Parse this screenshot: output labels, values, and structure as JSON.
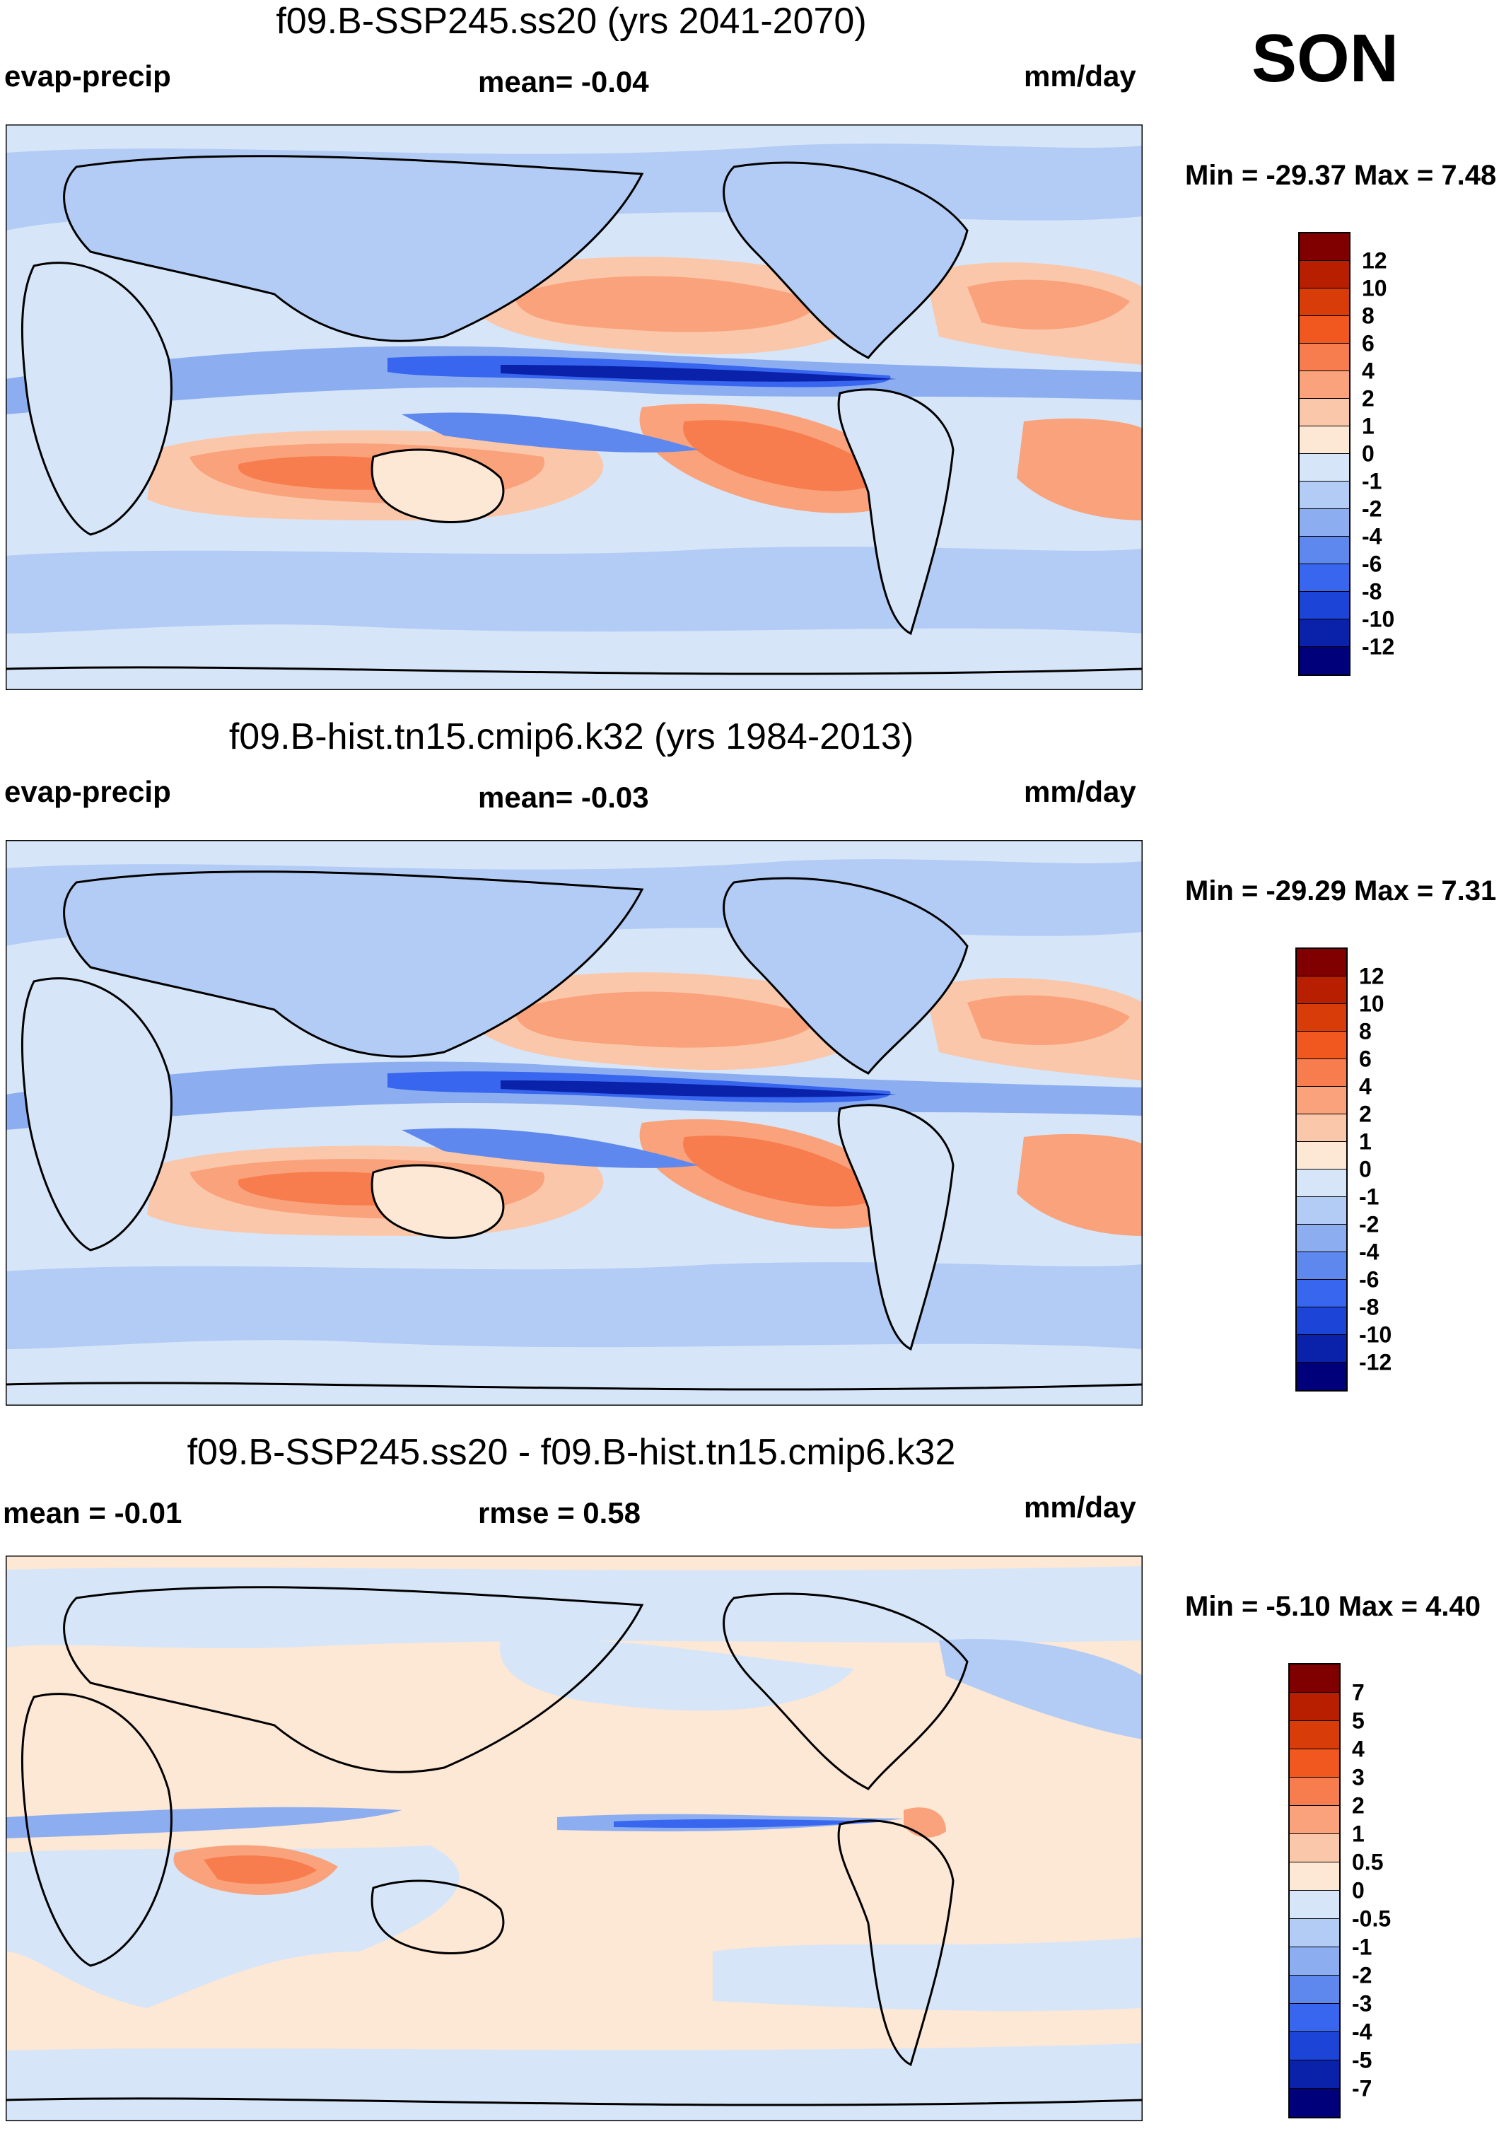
{
  "season": "SON",
  "panels": [
    {
      "title": "f09.B-SSP245.ss20 (yrs 2041-2070)",
      "left_label": "evap-precip",
      "center_label": "mean=  -0.04",
      "units": "mm/day",
      "minmax": "Min = -29.37 Max =   7.48",
      "colorbar_labels": [
        "12",
        "10",
        "8",
        "6",
        "4",
        "2",
        "1",
        "0",
        "-1",
        "-2",
        "-4",
        "-6",
        "-8",
        "-10",
        "-12"
      ]
    },
    {
      "title": "f09.B-hist.tn15.cmip6.k32 (yrs 1984-2013)",
      "left_label": "evap-precip",
      "center_label": "mean=  -0.03",
      "units": "mm/day",
      "minmax": "Min = -29.29 Max =   7.31",
      "colorbar_labels": [
        "12",
        "10",
        "8",
        "6",
        "4",
        "2",
        "1",
        "0",
        "-1",
        "-2",
        "-4",
        "-6",
        "-8",
        "-10",
        "-12"
      ]
    },
    {
      "title": "f09.B-SSP245.ss20 - f09.B-hist.tn15.cmip6.k32",
      "left_label": "mean =  -0.01",
      "center_label": "rmse =   0.58",
      "units": "mm/day",
      "minmax": "Min =  -5.10 Max =   4.40",
      "colorbar_labels": [
        "7",
        "5",
        "4",
        "3",
        "2",
        "1",
        "0.5",
        "0",
        "-0.5",
        "-1",
        "-2",
        "-3",
        "-4",
        "-5",
        "-7"
      ]
    }
  ],
  "colors": {
    "colorbar": [
      "#800000",
      "#b81e00",
      "#d83c08",
      "#f0581f",
      "#f77c4e",
      "#f9a27b",
      "#fbc7aa",
      "#fde7d5",
      "#d6e6f8",
      "#b3ccf5",
      "#8caef0",
      "#5f88ee",
      "#3866ee",
      "#1c44d6",
      "#0a22aa",
      "#00007a"
    ],
    "ocean": "#d6e6f8",
    "coast": "#000000"
  }
}
